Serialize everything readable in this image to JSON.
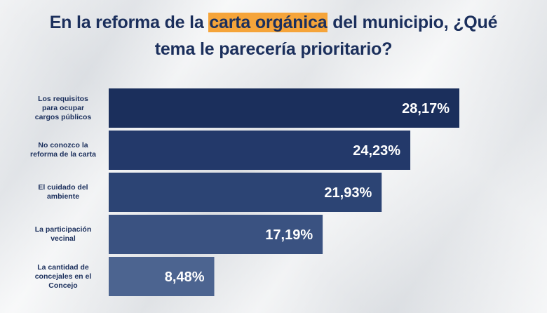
{
  "title": {
    "before": "En la reforma de la ",
    "highlight": "carta orgánica",
    "after": " del municipio, ¿Qué",
    "line2": "tema le parecería prioritario?"
  },
  "colors": {
    "title": "#1b2f5c",
    "highlight": "#f5a43a",
    "bars": [
      "#1b2f5c",
      "#23396a",
      "#2c4474",
      "#3a5281",
      "#4c6490"
    ]
  },
  "chart_data": {
    "type": "bar",
    "orientation": "horizontal",
    "title": "En la reforma de la carta orgánica del municipio, ¿Qué tema le parecería prioritario?",
    "categories": [
      "Los requisitos para ocupar cargos públicos",
      "No conozco la reforma de la carta",
      "El cuidado del ambiente",
      "La participación vecinal",
      "La cantidad de concejales en el Concejo"
    ],
    "category_lines": [
      [
        "Los requisitos",
        "para ocupar",
        "cargos públicos"
      ],
      [
        "No conozco la",
        "reforma de la carta"
      ],
      [
        "El cuidado del",
        "ambiente"
      ],
      [
        "La participación",
        "vecinal"
      ],
      [
        "La cantidad de",
        "concejales en el",
        "Concejo"
      ]
    ],
    "values": [
      28.17,
      24.23,
      21.93,
      17.19,
      8.48
    ],
    "value_labels": [
      "28,17%",
      "24,23%",
      "21,93%",
      "17,19%",
      "8,48%"
    ],
    "xlim": [
      0,
      28.17
    ],
    "unit": "%"
  }
}
